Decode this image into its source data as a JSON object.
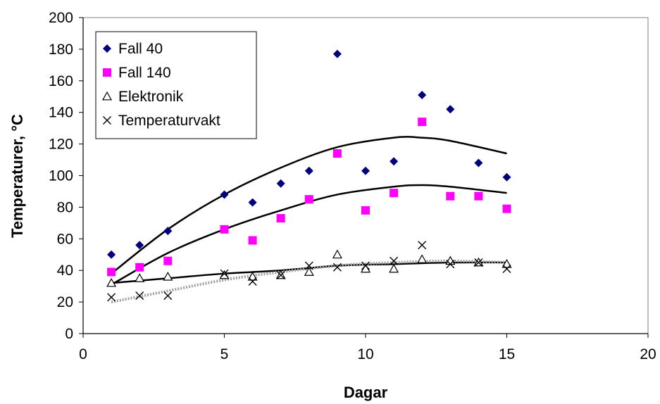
{
  "chart_data": {
    "type": "scatter",
    "title": "",
    "xlabel": "Dagar",
    "ylabel": "Temperaturer, °C",
    "xlim": [
      0,
      20
    ],
    "ylim": [
      0,
      200
    ],
    "xticks": [
      0,
      5,
      10,
      15,
      20
    ],
    "yticks": [
      0,
      20,
      40,
      60,
      80,
      100,
      120,
      140,
      160,
      180,
      200
    ],
    "grid": false,
    "legend_position": "top-left",
    "series": [
      {
        "name": "Fall 40",
        "marker": "diamond",
        "color": "#00007f",
        "x": [
          1,
          2,
          3,
          5,
          6,
          7,
          8,
          9,
          10,
          11,
          12,
          13,
          14,
          15
        ],
        "y": [
          50,
          56,
          65,
          88,
          83,
          95,
          103,
          177,
          103,
          109,
          151,
          142,
          108,
          99
        ]
      },
      {
        "name": "Fall 140",
        "marker": "square",
        "color": "#ff00ff",
        "x": [
          1,
          2,
          3,
          5,
          6,
          7,
          8,
          9,
          10,
          11,
          12,
          13,
          14,
          15
        ],
        "y": [
          39,
          42,
          46,
          66,
          59,
          73,
          85,
          114,
          78,
          89,
          134,
          87,
          87,
          79
        ]
      },
      {
        "name": "Elektronik",
        "marker": "triangle",
        "color": "#000000",
        "x": [
          1,
          2,
          3,
          5,
          6,
          7,
          8,
          9,
          10,
          11,
          12,
          13,
          14,
          15
        ],
        "y": [
          32,
          35,
          36,
          37,
          36,
          37,
          39,
          50,
          41,
          41,
          47,
          46,
          45,
          44
        ]
      },
      {
        "name": "Temperaturvakt",
        "marker": "cross",
        "color": "#000000",
        "x": [
          1,
          2,
          3,
          5,
          6,
          7,
          8,
          9,
          10,
          11,
          12,
          13,
          14,
          15
        ],
        "y": [
          23,
          24,
          24,
          38,
          33,
          37,
          43,
          42,
          43,
          46,
          56,
          44,
          45,
          41
        ]
      }
    ],
    "trendlines": [
      {
        "series": "Fall 40",
        "kind": "polynomial-2",
        "color": "#000000",
        "style": "solid",
        "x_range": [
          1,
          15
        ],
        "points": [
          [
            1,
            38
          ],
          [
            3,
            66
          ],
          [
            5,
            88
          ],
          [
            7,
            105
          ],
          [
            9,
            118
          ],
          [
            11,
            124
          ],
          [
            12,
            124
          ],
          [
            13,
            122
          ],
          [
            15,
            114
          ]
        ]
      },
      {
        "series": "Fall 140",
        "kind": "polynomial-2",
        "color": "#000000",
        "style": "solid",
        "x_range": [
          1,
          15
        ],
        "points": [
          [
            1,
            31
          ],
          [
            3,
            51
          ],
          [
            5,
            66
          ],
          [
            7,
            78
          ],
          [
            9,
            88
          ],
          [
            11,
            93
          ],
          [
            12,
            94
          ],
          [
            13,
            93
          ],
          [
            15,
            89
          ]
        ]
      },
      {
        "series": "Elektronik",
        "kind": "polynomial-2",
        "color": "#000000",
        "style": "solid",
        "x_range": [
          1,
          15
        ],
        "points": [
          [
            1,
            32
          ],
          [
            3,
            35
          ],
          [
            5,
            38
          ],
          [
            7,
            40
          ],
          [
            9,
            43
          ],
          [
            11,
            44
          ],
          [
            13,
            45
          ],
          [
            15,
            45
          ]
        ]
      },
      {
        "series": "Temperaturvakt",
        "kind": "polynomial-2",
        "color": "#a0a0a0",
        "style": "dotted",
        "x_range": [
          1,
          15
        ],
        "points": [
          [
            1,
            20
          ],
          [
            3,
            27
          ],
          [
            5,
            34
          ],
          [
            7,
            39
          ],
          [
            9,
            43
          ],
          [
            11,
            45
          ],
          [
            13,
            46
          ],
          [
            15,
            45
          ]
        ]
      }
    ]
  }
}
